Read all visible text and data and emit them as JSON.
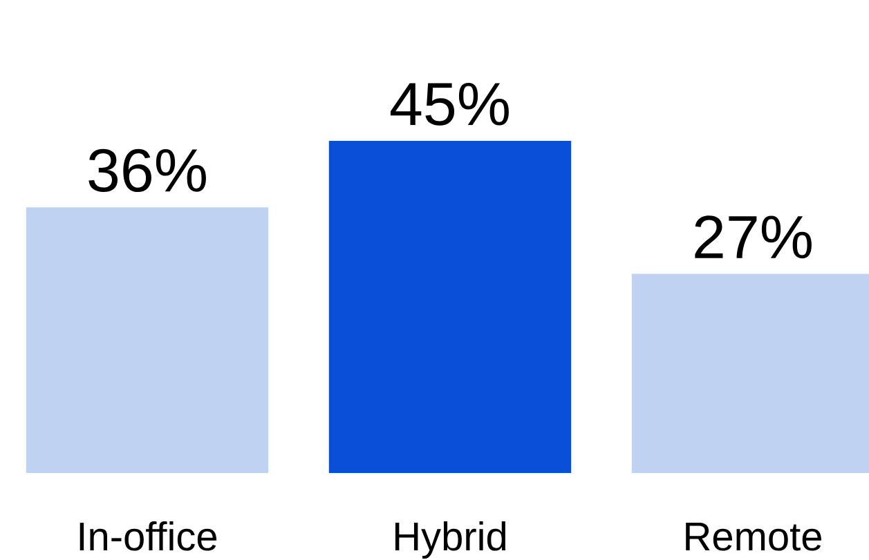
{
  "chart_data": {
    "type": "bar",
    "categories": [
      "In-office",
      "Hybrid",
      "Remote"
    ],
    "values": [
      36,
      45,
      27
    ],
    "value_labels": [
      "36%",
      "45%",
      "27%"
    ],
    "colors": [
      "#c0d2f2",
      "#0a4fd8",
      "#c0d2f2"
    ]
  }
}
